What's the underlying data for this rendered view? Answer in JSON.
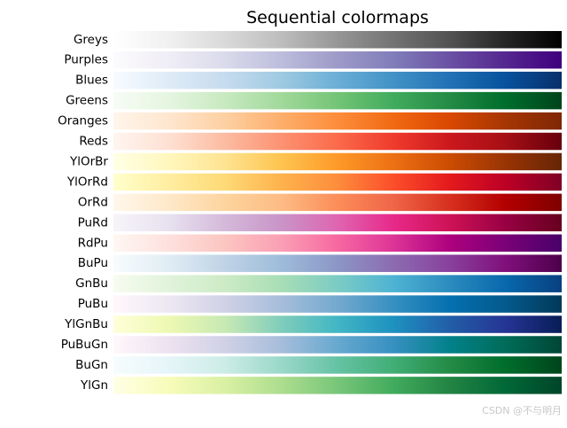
{
  "chart_data": {
    "type": "heatmap",
    "title": "Sequential colormaps",
    "xlabel": "",
    "ylabel": "",
    "grid": false,
    "legend": "none",
    "x": [
      0,
      1
    ],
    "series": [
      {
        "name": "Greys",
        "colors": [
          "#ffffff",
          "#f0f0f0",
          "#d9d9d9",
          "#bdbdbd",
          "#969696",
          "#737373",
          "#525252",
          "#252525",
          "#000000"
        ]
      },
      {
        "name": "Purples",
        "colors": [
          "#fcfbfd",
          "#efedf5",
          "#dadaeb",
          "#bcbddc",
          "#9e9ac8",
          "#807dba",
          "#6a51a3",
          "#54278f",
          "#3f007d"
        ]
      },
      {
        "name": "Blues",
        "colors": [
          "#f7fbff",
          "#deebf7",
          "#c6dbef",
          "#9ecae1",
          "#6baed6",
          "#4292c6",
          "#2171b5",
          "#08519c",
          "#08306b"
        ]
      },
      {
        "name": "Greens",
        "colors": [
          "#f7fcf5",
          "#e5f5e0",
          "#c7e9c0",
          "#a1d99b",
          "#74c476",
          "#41ab5d",
          "#238b45",
          "#006d2c",
          "#00441b"
        ]
      },
      {
        "name": "Oranges",
        "colors": [
          "#fff5eb",
          "#fee6ce",
          "#fdd0a2",
          "#fdae6b",
          "#fd8d3c",
          "#f16913",
          "#d94801",
          "#a63603",
          "#7f2704"
        ]
      },
      {
        "name": "Reds",
        "colors": [
          "#fff5f0",
          "#fee0d2",
          "#fcbba1",
          "#fc9272",
          "#fb6a4a",
          "#ef3b2c",
          "#cb181d",
          "#a50f15",
          "#67000d"
        ]
      },
      {
        "name": "YlOrBr",
        "colors": [
          "#ffffe5",
          "#fff7bc",
          "#fee391",
          "#fec44f",
          "#fe9929",
          "#ec7014",
          "#cc4c02",
          "#993404",
          "#662506"
        ]
      },
      {
        "name": "YlOrRd",
        "colors": [
          "#ffffcc",
          "#ffeda0",
          "#fed976",
          "#feb24c",
          "#fd8d3c",
          "#fc4e2a",
          "#e31a1c",
          "#bd0026",
          "#800026"
        ]
      },
      {
        "name": "OrRd",
        "colors": [
          "#fff7ec",
          "#fee8c8",
          "#fdd49e",
          "#fdbb84",
          "#fc8d59",
          "#ef6548",
          "#d7301f",
          "#b30000",
          "#7f0000"
        ]
      },
      {
        "name": "PuRd",
        "colors": [
          "#f7f4f9",
          "#e7e1ef",
          "#d4b9da",
          "#c994c7",
          "#df65b0",
          "#e7298a",
          "#ce1256",
          "#980043",
          "#67001f"
        ]
      },
      {
        "name": "RdPu",
        "colors": [
          "#fff7f3",
          "#fde0dd",
          "#fcc5c0",
          "#fa9fb5",
          "#f768a1",
          "#dd3497",
          "#ae017e",
          "#7a0177",
          "#49006a"
        ]
      },
      {
        "name": "BuPu",
        "colors": [
          "#f7fcfd",
          "#e0ecf4",
          "#bfd3e6",
          "#9ebcda",
          "#8c96c6",
          "#8c6bb1",
          "#88419d",
          "#810f7c",
          "#4d004b"
        ]
      },
      {
        "name": "GnBu",
        "colors": [
          "#f7fcf0",
          "#e0f3db",
          "#ccebc5",
          "#a8ddb5",
          "#7bccc4",
          "#4eb3d3",
          "#2b8cbe",
          "#0868ac",
          "#084081"
        ]
      },
      {
        "name": "PuBu",
        "colors": [
          "#fff7fb",
          "#ece7f2",
          "#d0d1e6",
          "#a6bddb",
          "#74a9cf",
          "#3690c0",
          "#0570b0",
          "#045a8d",
          "#023858"
        ]
      },
      {
        "name": "YlGnBu",
        "colors": [
          "#ffffd9",
          "#edf8b1",
          "#c7e9b4",
          "#7fcdbb",
          "#41b6c4",
          "#1d91c0",
          "#225ea8",
          "#253494",
          "#081d58"
        ]
      },
      {
        "name": "PuBuGn",
        "colors": [
          "#fff7fb",
          "#ece2f0",
          "#d0d1e6",
          "#a6bddb",
          "#67a9cf",
          "#3690c0",
          "#02818a",
          "#016c59",
          "#014636"
        ]
      },
      {
        "name": "BuGn",
        "colors": [
          "#f7fcfd",
          "#e5f5f9",
          "#ccece6",
          "#99d8c9",
          "#66c2a4",
          "#41ae76",
          "#238b45",
          "#006d2c",
          "#00441b"
        ]
      },
      {
        "name": "YlGn",
        "colors": [
          "#ffffe5",
          "#f7fcb9",
          "#d9f0a3",
          "#addd8e",
          "#78c679",
          "#41ab5d",
          "#238443",
          "#006837",
          "#004529"
        ]
      }
    ]
  },
  "watermark": "CSDN @不与明月"
}
